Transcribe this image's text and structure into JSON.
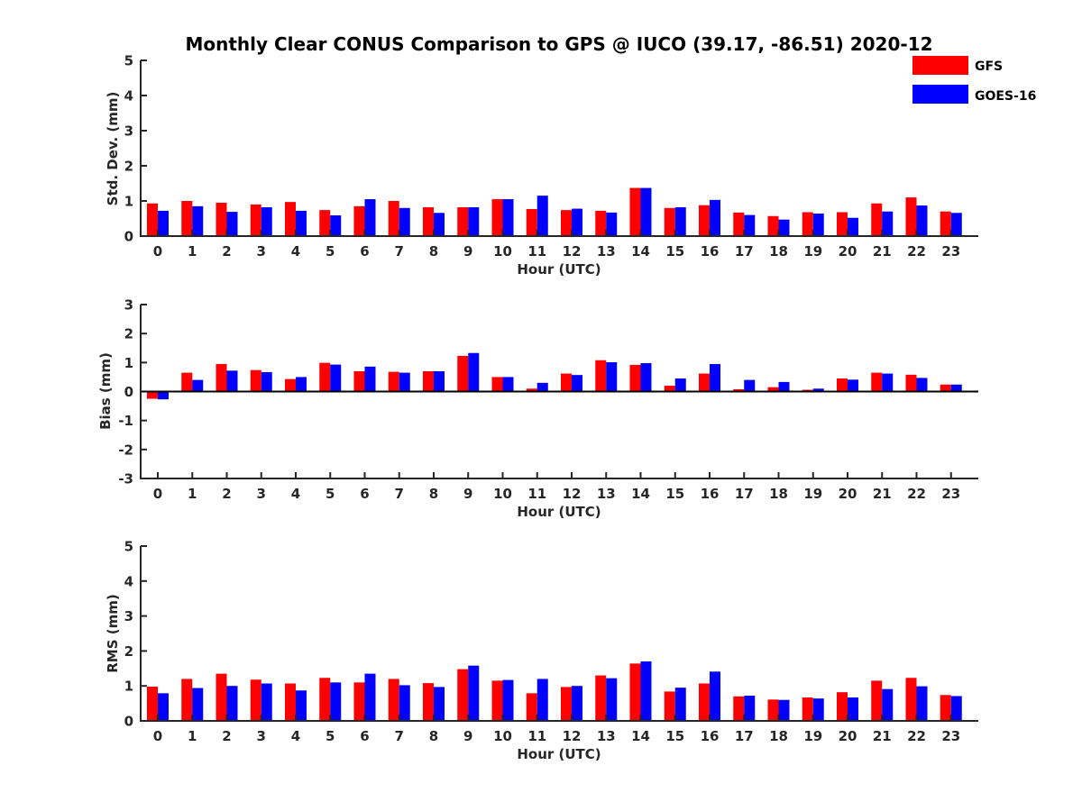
{
  "chart_data": [
    {
      "type": "bar",
      "title": "Monthly Clear CONUS Comparison to GPS @ IUCO (39.17, -86.51) 2020-12",
      "ylabel": "Std. Dev. (mm)",
      "xlabel": "Hour (UTC)",
      "ylim": [
        0,
        5
      ],
      "yticks": [
        "0",
        "1",
        "2",
        "3",
        "4",
        "5"
      ],
      "categories": [
        "0",
        "1",
        "2",
        "3",
        "4",
        "5",
        "6",
        "7",
        "8",
        "9",
        "10",
        "11",
        "12",
        "13",
        "14",
        "15",
        "16",
        "17",
        "18",
        "19",
        "20",
        "21",
        "22",
        "23"
      ],
      "series": [
        {
          "name": "GFS",
          "color": "#ff0000",
          "values": [
            0.93,
            1.0,
            0.95,
            0.9,
            0.97,
            0.74,
            0.85,
            1.0,
            0.82,
            0.82,
            1.05,
            0.77,
            0.74,
            0.72,
            1.37,
            0.8,
            0.88,
            0.67,
            0.57,
            0.68,
            0.68,
            0.93,
            1.1,
            0.7
          ]
        },
        {
          "name": "GOES-16",
          "color": "#0000ff",
          "values": [
            0.72,
            0.85,
            0.69,
            0.82,
            0.72,
            0.59,
            1.05,
            0.8,
            0.66,
            0.82,
            1.05,
            1.15,
            0.78,
            0.67,
            1.37,
            0.82,
            1.03,
            0.6,
            0.47,
            0.64,
            0.52,
            0.7,
            0.87,
            0.66
          ]
        }
      ]
    },
    {
      "type": "bar",
      "ylabel": "Bias (mm)",
      "xlabel": "Hour (UTC)",
      "ylim": [
        -3,
        3
      ],
      "yticks": [
        "-3",
        "-2",
        "-1",
        "0",
        "1",
        "2",
        "3"
      ],
      "categories": [
        "0",
        "1",
        "2",
        "3",
        "4",
        "5",
        "6",
        "7",
        "8",
        "9",
        "10",
        "11",
        "12",
        "13",
        "14",
        "15",
        "16",
        "17",
        "18",
        "19",
        "20",
        "21",
        "22",
        "23"
      ],
      "series": [
        {
          "name": "GFS",
          "color": "#ff0000",
          "values": [
            -0.25,
            0.65,
            0.95,
            0.74,
            0.43,
            0.99,
            0.7,
            0.68,
            0.7,
            1.23,
            0.5,
            0.1,
            0.62,
            1.08,
            0.92,
            0.2,
            0.62,
            0.08,
            0.15,
            0.06,
            0.45,
            0.65,
            0.58,
            0.24
          ]
        },
        {
          "name": "GOES-16",
          "color": "#0000ff",
          "values": [
            -0.27,
            0.4,
            0.72,
            0.67,
            0.5,
            0.93,
            0.86,
            0.65,
            0.7,
            1.33,
            0.5,
            0.3,
            0.57,
            1.01,
            0.98,
            0.45,
            0.95,
            0.4,
            0.33,
            0.1,
            0.41,
            0.62,
            0.47,
            0.24
          ]
        }
      ]
    },
    {
      "type": "bar",
      "ylabel": "RMS (mm)",
      "xlabel": "Hour (UTC)",
      "ylim": [
        0,
        5
      ],
      "yticks": [
        "0",
        "1",
        "2",
        "3",
        "4",
        "5"
      ],
      "categories": [
        "0",
        "1",
        "2",
        "3",
        "4",
        "5",
        "6",
        "7",
        "8",
        "9",
        "10",
        "11",
        "12",
        "13",
        "14",
        "15",
        "16",
        "17",
        "18",
        "19",
        "20",
        "21",
        "22",
        "23"
      ],
      "series": [
        {
          "name": "GFS",
          "color": "#ff0000",
          "values": [
            0.98,
            1.2,
            1.35,
            1.18,
            1.07,
            1.23,
            1.1,
            1.2,
            1.08,
            1.48,
            1.15,
            0.79,
            0.97,
            1.3,
            1.64,
            0.84,
            1.07,
            0.7,
            0.61,
            0.67,
            0.82,
            1.15,
            1.23,
            0.74
          ]
        },
        {
          "name": "GOES-16",
          "color": "#0000ff",
          "values": [
            0.79,
            0.94,
            1.0,
            1.07,
            0.87,
            1.1,
            1.35,
            1.02,
            0.97,
            1.58,
            1.17,
            1.2,
            1.0,
            1.22,
            1.7,
            0.95,
            1.41,
            0.72,
            0.6,
            0.64,
            0.67,
            0.91,
            0.99,
            0.71
          ]
        }
      ]
    }
  ],
  "legend": {
    "placement": "top-right",
    "entries": [
      {
        "label": "GFS",
        "color": "#ff0000"
      },
      {
        "label": "GOES-16",
        "color": "#0000ff"
      }
    ]
  }
}
